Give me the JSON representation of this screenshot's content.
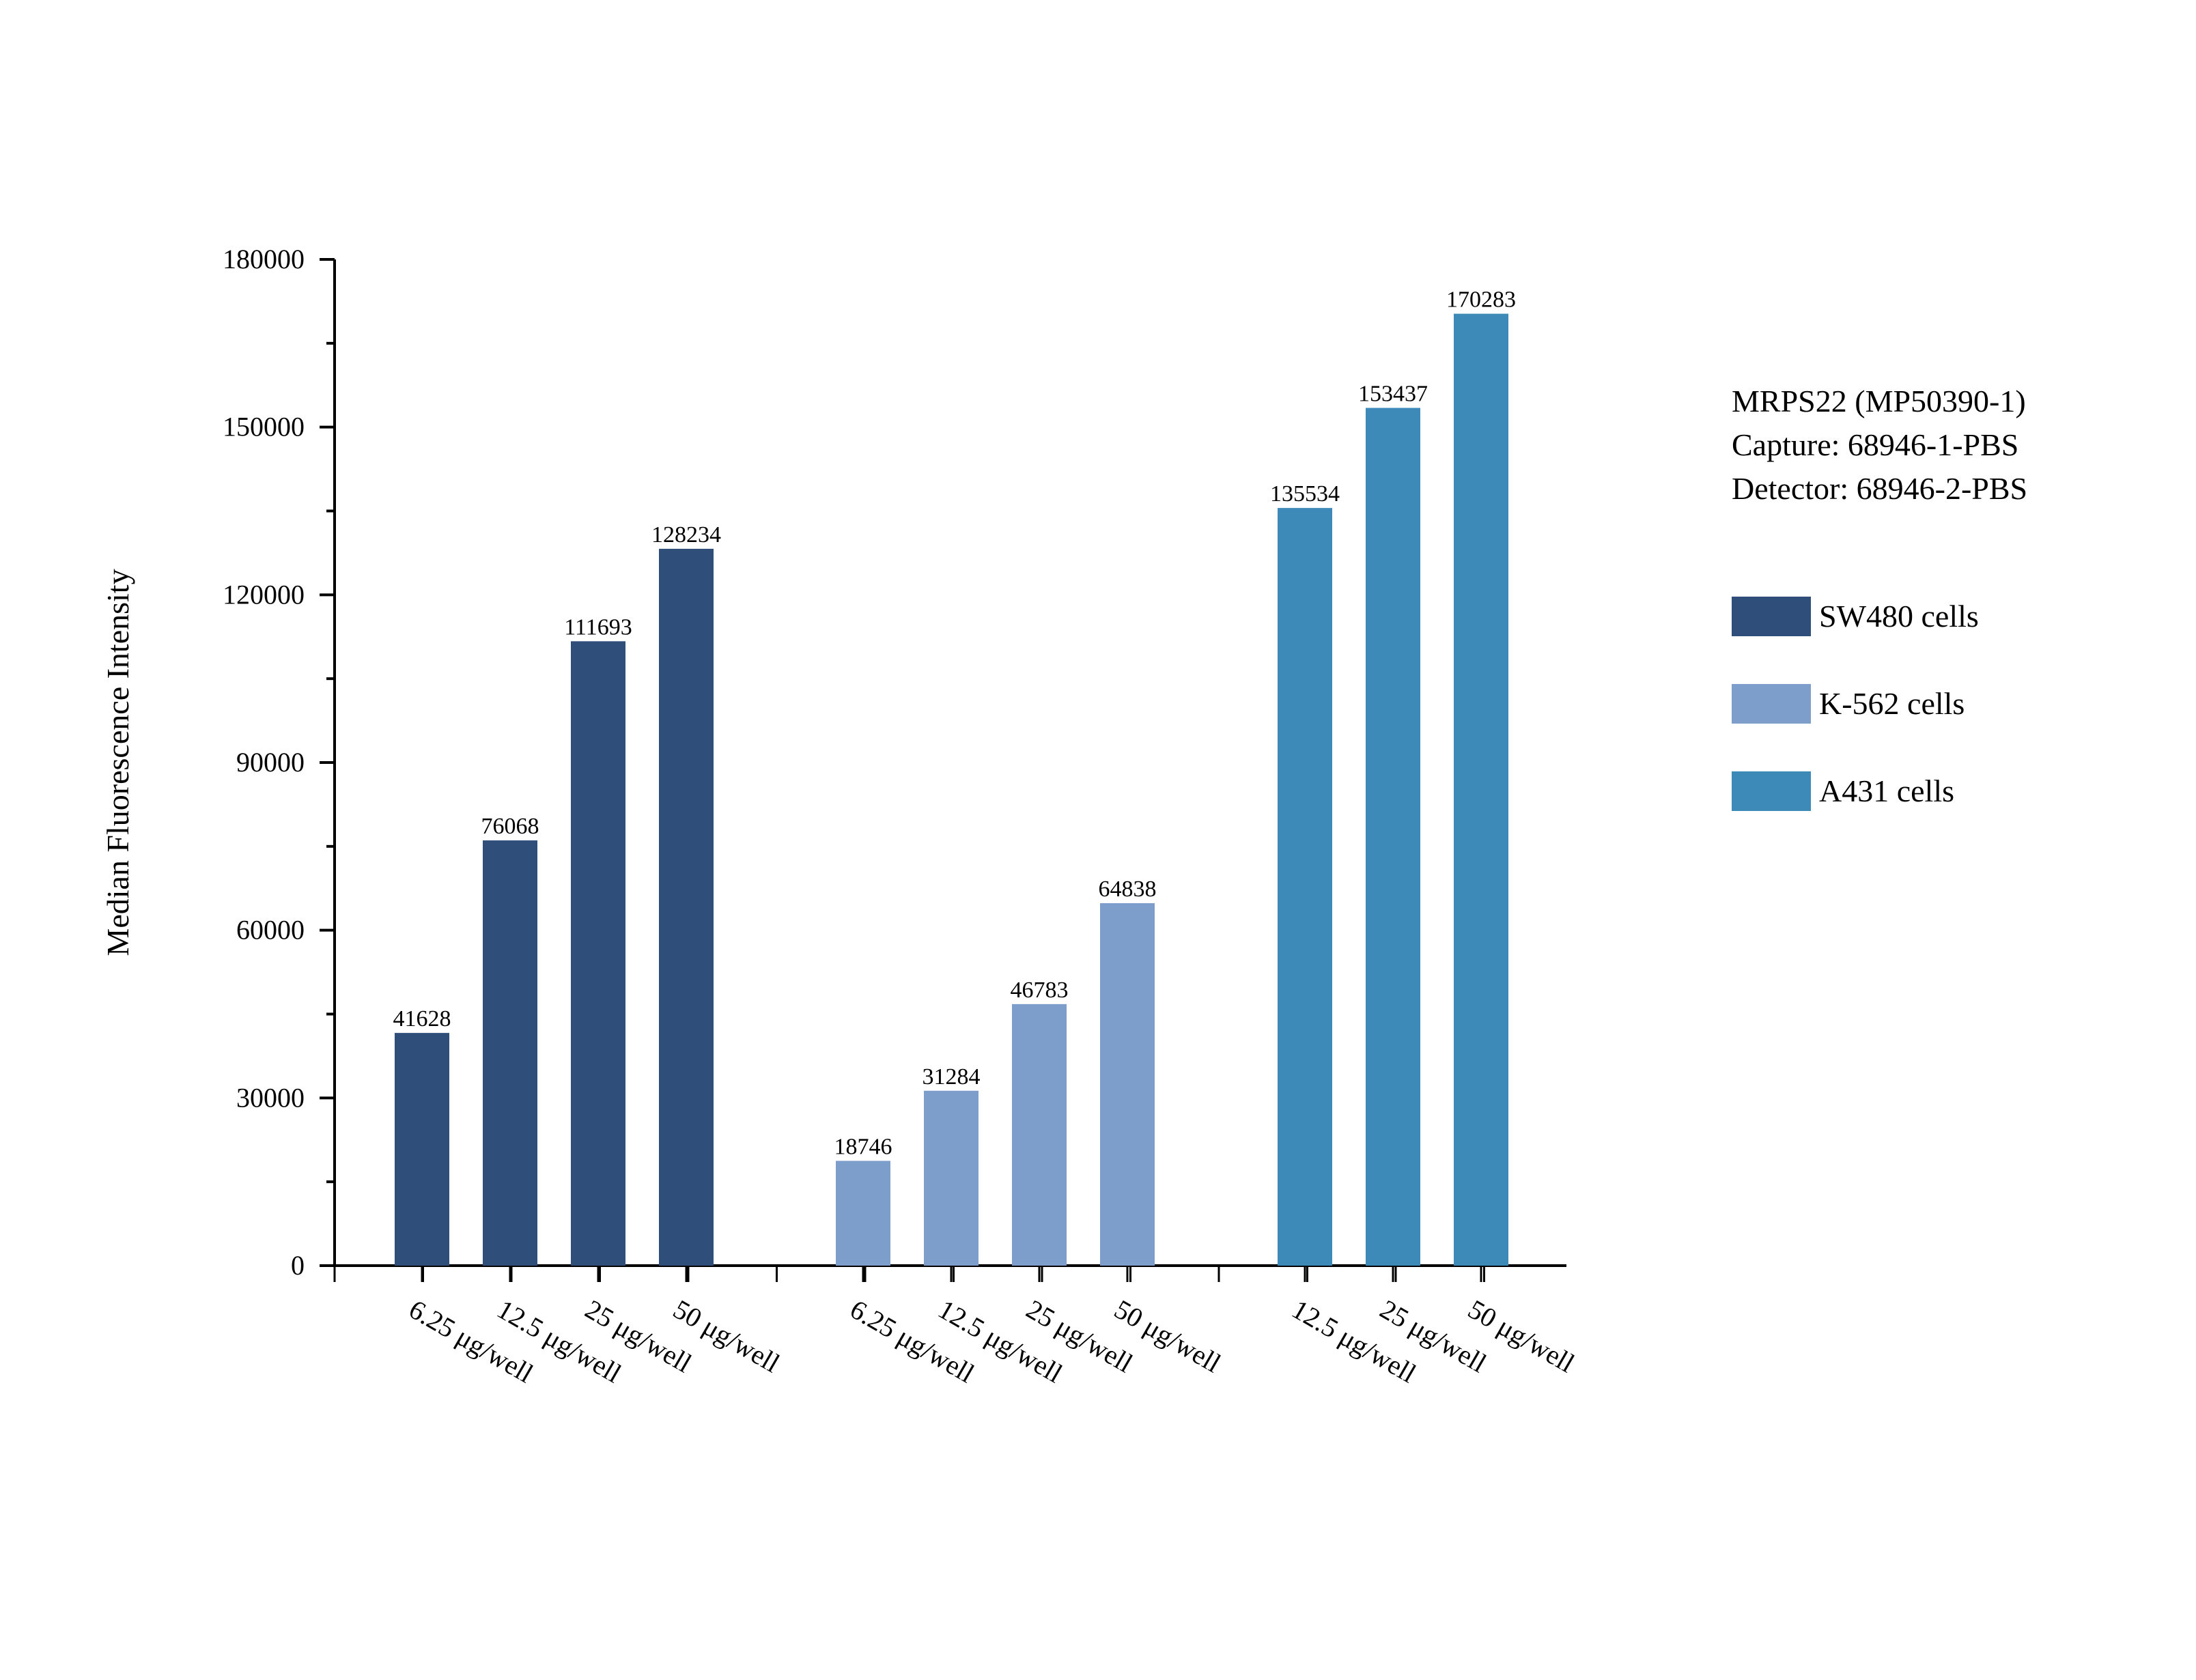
{
  "chart_data": {
    "type": "bar",
    "ylabel": "Median Fluorescence Intensity",
    "xlabel": "",
    "ylim": [
      0,
      180000
    ],
    "yticks": [
      0,
      30000,
      60000,
      90000,
      120000,
      150000,
      180000
    ],
    "ytick_labels": [
      "0",
      "30000",
      "60000",
      "90000",
      "120000",
      "150000",
      "180000"
    ],
    "grid": false,
    "legend_position": "right",
    "series": [
      {
        "name": "SW480 cells",
        "color": "#2f4e79",
        "categories": [
          "6.25 μg/well",
          "12.5 μg/well",
          "25 μg/well",
          "50 μg/well"
        ],
        "values": [
          41628,
          76068,
          111693,
          128234
        ]
      },
      {
        "name": "K-562 cells",
        "color": "#7d9dcb",
        "categories": [
          "6.25 μg/well",
          "12.5 μg/well",
          "25 μg/well",
          "50 μg/well"
        ],
        "values": [
          18746,
          31284,
          46783,
          64838
        ]
      },
      {
        "name": "A431 cells",
        "color": "#3d8ab9",
        "categories": [
          "12.5 μg/well",
          "25 μg/well",
          "50 μg/well"
        ],
        "values": [
          135534,
          153437,
          170283
        ]
      }
    ]
  },
  "info": {
    "line1": "MRPS22 (MP50390-1)",
    "line2": "Capture: 68946-1-PBS",
    "line3": "Detector: 68946-2-PBS"
  }
}
